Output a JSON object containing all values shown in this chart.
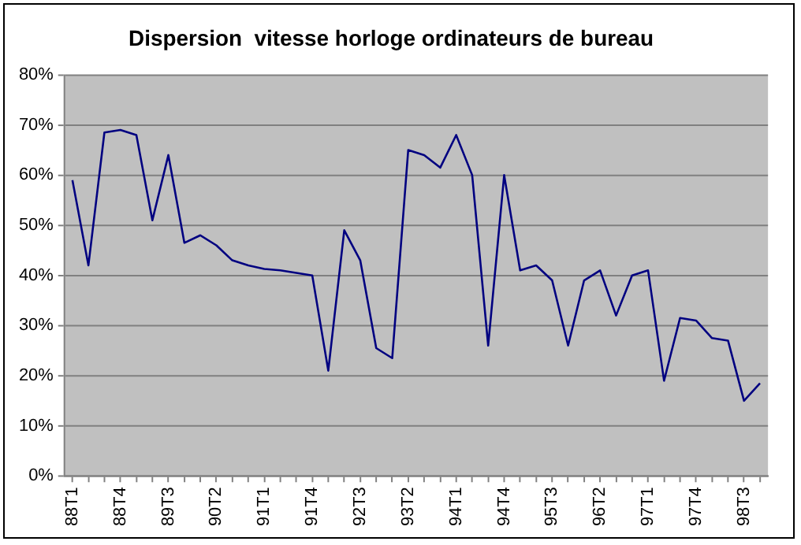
{
  "chart_data": {
    "type": "line",
    "title": "Dispersion  vitesse horloge ordinateurs de bureau",
    "categories": [
      "88T1",
      null,
      null,
      "88T4",
      null,
      null,
      "89T3",
      null,
      null,
      "90T2",
      null,
      null,
      "91T1",
      null,
      null,
      "91T4",
      null,
      null,
      "92T3",
      null,
      null,
      "93T2",
      null,
      null,
      "94T1",
      null,
      null,
      "94T4",
      null,
      null,
      "95T3",
      null,
      null,
      "96T2",
      null,
      null,
      "97T1",
      null,
      null,
      "97T4",
      null,
      null,
      "98T3",
      null
    ],
    "series": [
      {
        "color": "#000080",
        "values": [
          59,
          42,
          68.5,
          69,
          68,
          51,
          64,
          46.5,
          48,
          46,
          43,
          42,
          41.3,
          41,
          40.5,
          40,
          21,
          49,
          43,
          25.5,
          23.5,
          65,
          64,
          61.5,
          68,
          60,
          26,
          60,
          41,
          42,
          39,
          26,
          39,
          41,
          32,
          40,
          41,
          19,
          31.5,
          31,
          27.5,
          27,
          15,
          18.5
        ]
      }
    ],
    "ylim": [
      0,
      80
    ],
    "yticks": [
      {
        "value": 0,
        "label": "0%"
      },
      {
        "value": 10,
        "label": "10%"
      },
      {
        "value": 20,
        "label": "20%"
      },
      {
        "value": 30,
        "label": "30%"
      },
      {
        "value": 40,
        "label": "40%"
      },
      {
        "value": 50,
        "label": "50%"
      },
      {
        "value": 60,
        "label": "60%"
      },
      {
        "value": 70,
        "label": "70%"
      },
      {
        "value": 80,
        "label": "80%"
      }
    ],
    "grid": "y",
    "legend": false,
    "marker": "none",
    "line_style": "solid"
  }
}
